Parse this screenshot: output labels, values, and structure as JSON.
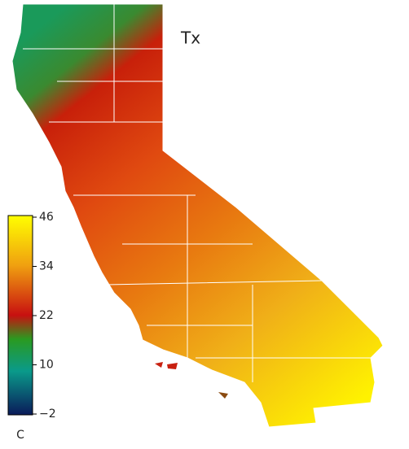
{
  "map": {
    "title": "Tx",
    "colorbar": {
      "unit": "C",
      "range": [
        -2,
        46
      ],
      "ticks": [
        {
          "value": -2,
          "label": "−2"
        },
        10,
        22,
        34,
        46
      ]
    }
  }
}
